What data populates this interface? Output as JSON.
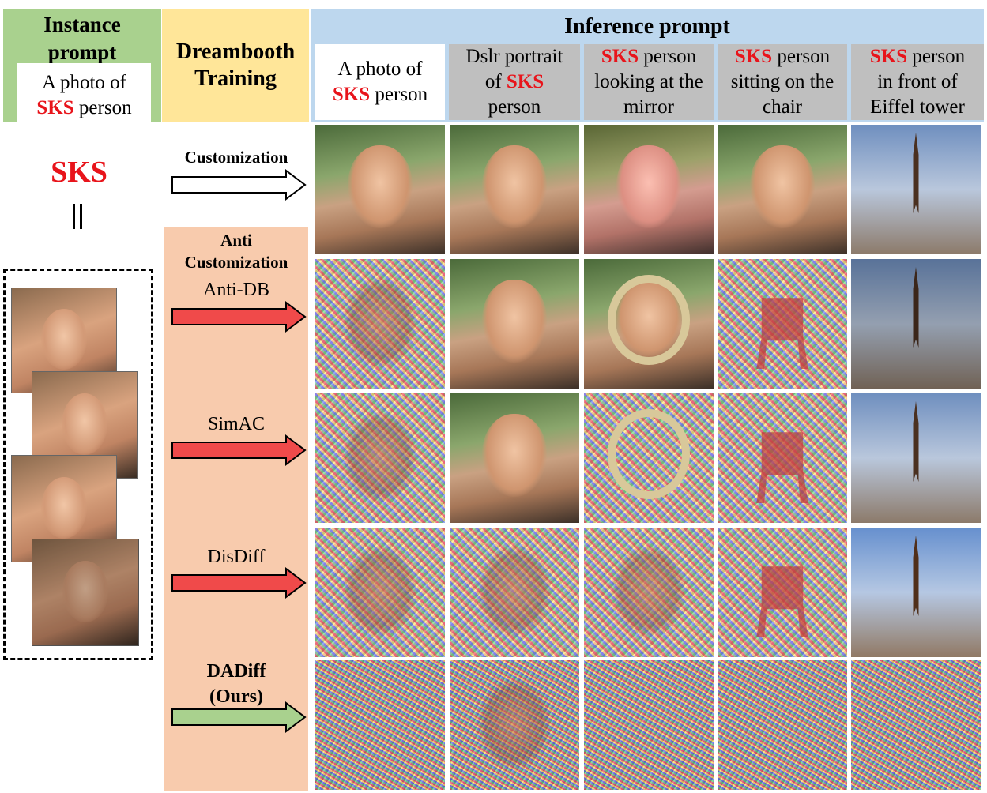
{
  "colors": {
    "instance_bg": "#a9d18e",
    "dreambooth_bg": "#ffe699",
    "inference_bg": "#bdd7ee",
    "anti_bg": "#f8cbad",
    "prompt_gray": "#bfbfbf",
    "sks_red": "#e8141b",
    "arrow_red": "#f04a4a",
    "arrow_green": "#a9d18e"
  },
  "header": {
    "instance": {
      "title_line1": "Instance",
      "title_line2": "prompt",
      "box_line1": "A photo of",
      "box_sks": "SKS",
      "box_rest": " person"
    },
    "dreambooth": {
      "line1": "Dreambooth",
      "line2": "Training"
    },
    "inference_title": "Inference prompt",
    "prompts": [
      {
        "pre": "A photo of",
        "sks": "SKS",
        "post": " person",
        "layout": "photo"
      },
      {
        "line1": "Dslr portrait",
        "pre2": "of ",
        "sks": "SKS",
        "line3": "person",
        "layout": "dslr"
      },
      {
        "sks": "SKS",
        "rest1": " person",
        "line2": "looking at the",
        "line3": "mirror",
        "layout": "std"
      },
      {
        "sks": "SKS",
        "rest1": " person",
        "line2": "sitting on the",
        "line3": "chair",
        "layout": "std"
      },
      {
        "sks": "SKS",
        "rest1": " person",
        "line2": "in front of",
        "line3": "Eiffel tower",
        "layout": "std"
      }
    ]
  },
  "left": {
    "sks_label": "SKS",
    "training_images": [
      "training-face-1",
      "training-face-2",
      "training-face-3",
      "training-face-4"
    ]
  },
  "methods": {
    "customization_label": "Customization",
    "anti_title_line1": "Anti",
    "anti_title_line2": "Customization",
    "rows": [
      {
        "name": "Anti-DB",
        "arrow": "red-arrow"
      },
      {
        "name": "SimAC",
        "arrow": "red-arrow"
      },
      {
        "name": "DisDiff",
        "arrow": "red-arrow"
      },
      {
        "name_line1": "DADiff",
        "name_line2": "(Ours)",
        "arrow": "green-arrow"
      }
    ]
  }
}
